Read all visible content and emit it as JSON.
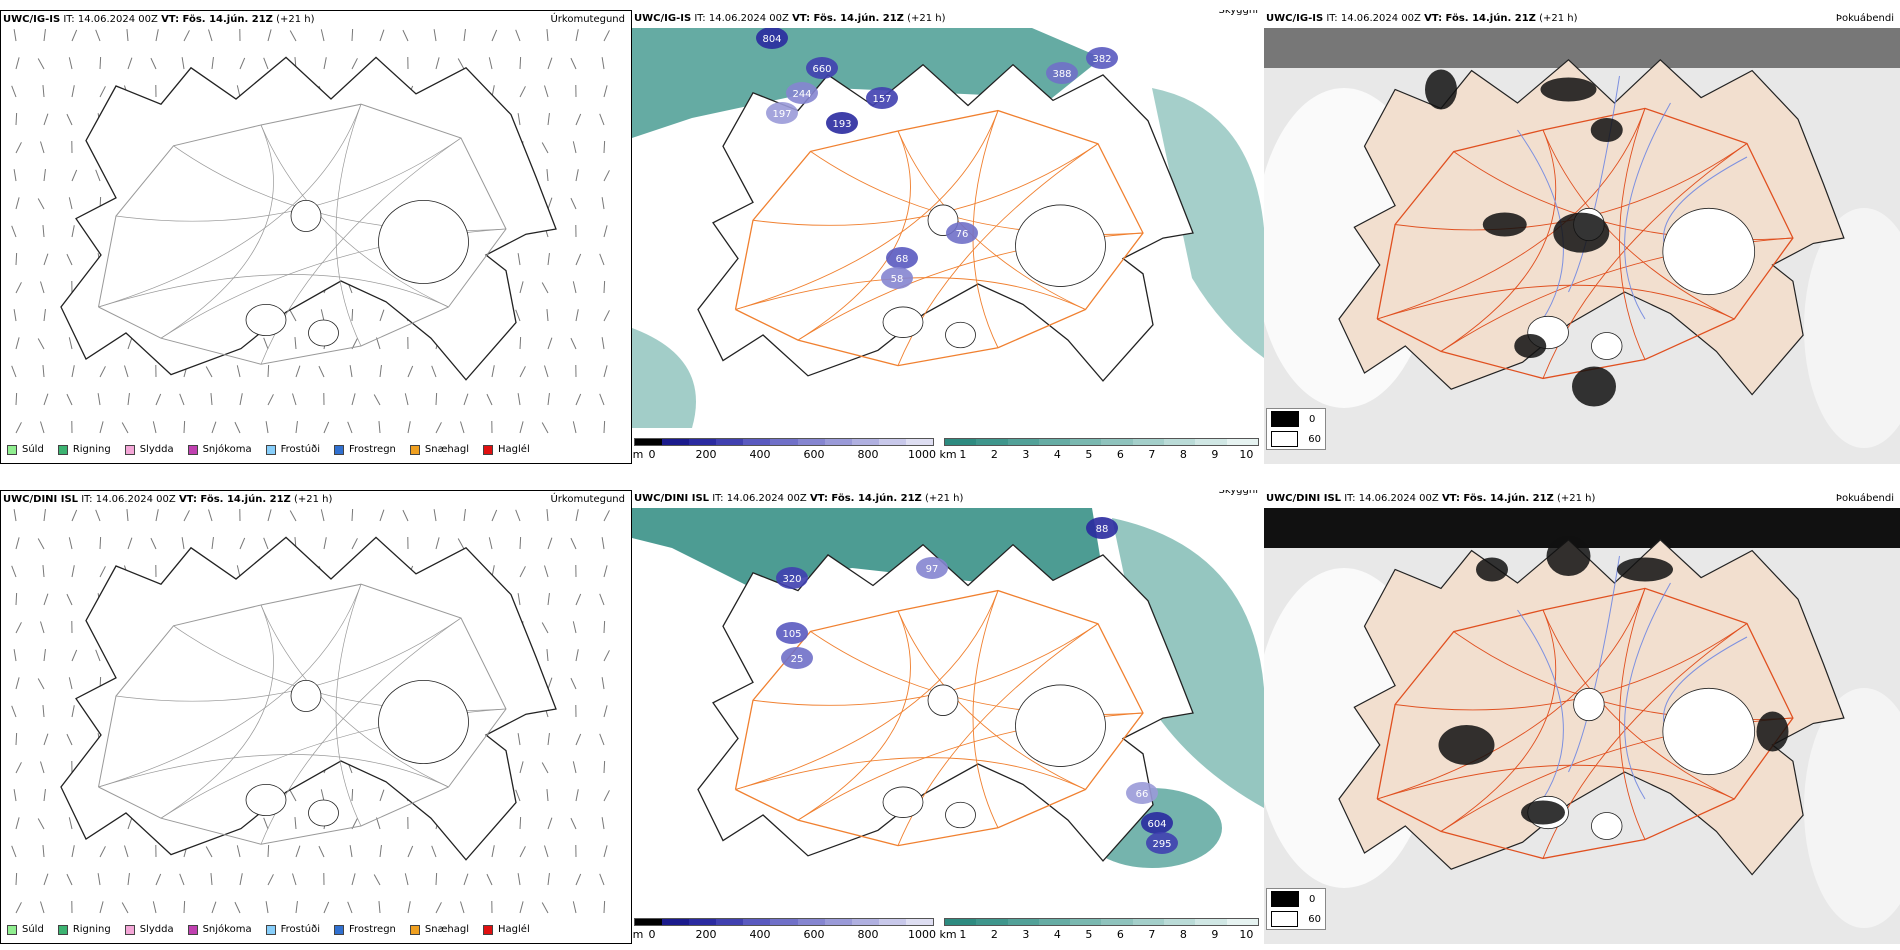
{
  "rows": [
    {
      "model": "UWC/IG-IS",
      "it": "IT: 14.06.2024 00Z",
      "vt": "VT: Fös. 14.jún. 21Z",
      "lead": "(+21 h)",
      "precip_title": "Úrkomutegund",
      "cloud_title": "Skyggni",
      "fog_title": "Þokuábendi",
      "cloud_labels": [
        "804",
        "660",
        "382",
        "388",
        "244",
        "197",
        "193",
        "157",
        "68",
        "76",
        "58"
      ]
    },
    {
      "model": "UWC/DINI ISL",
      "it": "IT: 14.06.2024 00Z",
      "vt": "VT: Fös. 14.jún. 21Z",
      "lead": "(+21 h)",
      "precip_title": "Úrkomutegund",
      "cloud_title": "Skyggni",
      "fog_title": "Þokuábendi",
      "cloud_labels": [
        "88",
        "320",
        "105",
        "25",
        "97",
        "66",
        "604",
        "295"
      ]
    }
  ],
  "precip_legend": [
    {
      "label": "Súld",
      "color": "#90ee90"
    },
    {
      "label": "Rigning",
      "color": "#3cb371"
    },
    {
      "label": "Slydda",
      "color": "#f4a6d7"
    },
    {
      "label": "Snjókoma",
      "color": "#c040b0"
    },
    {
      "label": "Frostúði",
      "color": "#87cefa"
    },
    {
      "label": "Frostregn",
      "color": "#3070d0"
    },
    {
      "label": "Snæhagl",
      "color": "#f0a020"
    },
    {
      "label": "Haglél",
      "color": "#e01010"
    }
  ],
  "base_scale": {
    "unit": "m",
    "ticks": [
      "0",
      "200",
      "400",
      "600",
      "800",
      "1000"
    ],
    "colors": [
      "#000000",
      "#1a1a8c",
      "#2a2aa0",
      "#4040b0",
      "#5a5ac0",
      "#7070c8",
      "#8585d0",
      "#9a9ad8",
      "#b0b0e0",
      "#c8c8ea",
      "#dedef2"
    ]
  },
  "vis_scale": {
    "unit": "km",
    "ticks": [
      "1",
      "2",
      "3",
      "4",
      "5",
      "6",
      "7",
      "8",
      "9",
      "10"
    ],
    "colors": [
      "#2e8b80",
      "#3f968c",
      "#52a198",
      "#66aca4",
      "#7ab8b0",
      "#8fc3bd",
      "#a4cfca",
      "#badbd7",
      "#d0e7e4",
      "#e6f3f1"
    ]
  },
  "fog_legend": [
    {
      "label": "0",
      "color": "#000000"
    },
    {
      "label": "60",
      "color": "#ffffff"
    }
  ]
}
